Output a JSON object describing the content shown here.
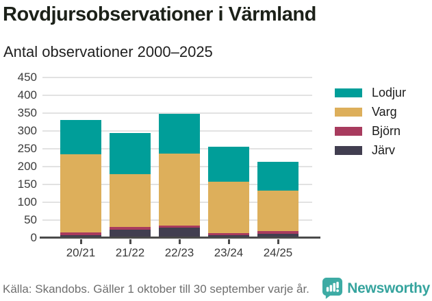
{
  "header": {
    "title": "Rovdjursobservationer i Värmland",
    "subtitle": "Antal observationer 2000–2025"
  },
  "chart_data": {
    "type": "bar",
    "stacked": true,
    "title": "Rovdjursobservationer i Värmland",
    "subtitle": "Antal observationer 2000–2025",
    "categories": [
      "20/21",
      "21/22",
      "22/23",
      "23/24",
      "24/25"
    ],
    "series": [
      {
        "name": "Lodjur",
        "color": "#009e99",
        "values": [
          95,
          117,
          112,
          98,
          80
        ]
      },
      {
        "name": "Varg",
        "color": "#ddaf5b",
        "values": [
          220,
          148,
          203,
          144,
          114
        ]
      },
      {
        "name": "Björn",
        "color": "#a83b5e",
        "values": [
          8,
          7,
          6,
          6,
          7
        ]
      },
      {
        "name": "Järv",
        "color": "#413e50",
        "values": [
          7,
          23,
          28,
          7,
          12
        ]
      }
    ],
    "stack_order_bottom_to_top": [
      "Järv",
      "Björn",
      "Varg",
      "Lodjur"
    ],
    "totals": [
      330,
      295,
      349,
      255,
      213
    ],
    "xlabel": "",
    "ylabel": "",
    "ylim": [
      0,
      450
    ],
    "yticks": [
      0,
      50,
      100,
      150,
      200,
      250,
      300,
      350,
      400,
      450
    ],
    "grid": true,
    "legend_position": "right"
  },
  "footer": {
    "source": "Källa: Skandobs. Gäller 1 oktober till 30 september varje år.",
    "brand": "Newsworthy"
  },
  "colors": {
    "brand_teal": "#36a49e",
    "gridline": "#e2e2e2",
    "axis": "#4a4a4a",
    "title_text": "#1c2119",
    "footer_text": "#6e6e6e"
  }
}
